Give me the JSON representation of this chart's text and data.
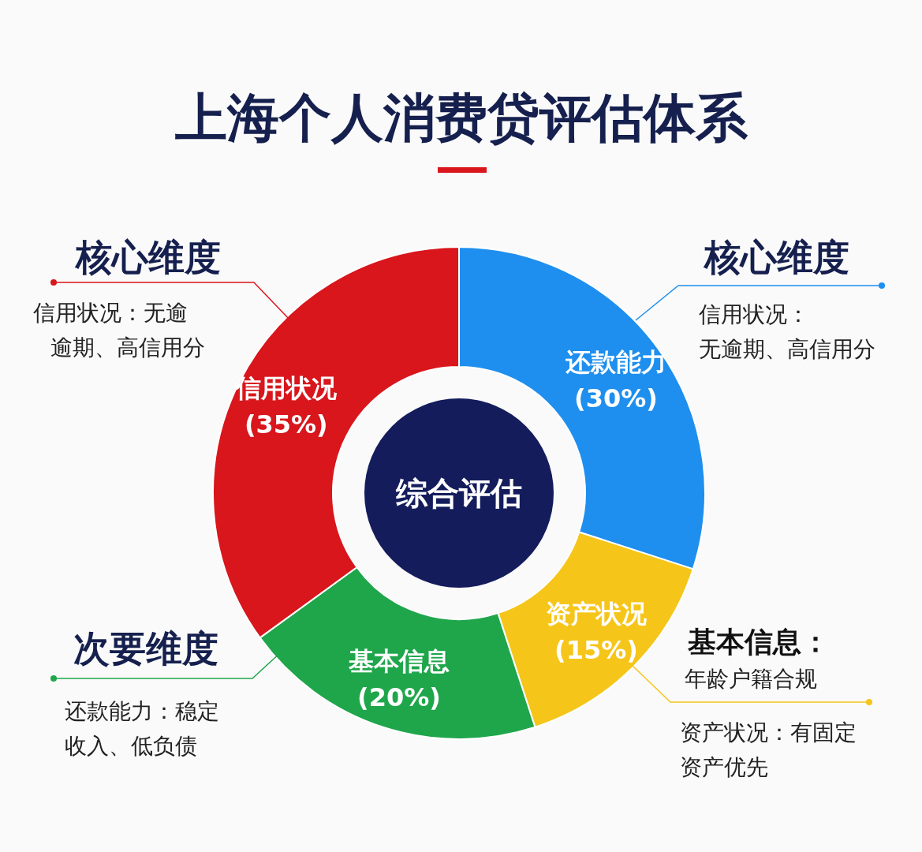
{
  "chart_data": {
    "type": "donut",
    "title": "上海个人消费贷评估体系",
    "categories": [
      "还款能力",
      "资产状况",
      "基本信息",
      "信用状况"
    ],
    "values": [
      30,
      15,
      20,
      35
    ],
    "colors": [
      "#1e8fee",
      "#f6c51a",
      "#1fa64b",
      "#d8161c"
    ],
    "value_labels": [
      "(30%)",
      "(15%)",
      "(20%)",
      "(35%)"
    ],
    "annotations": [
      "综合评估",
      "核心维度",
      "信用状况：无逾",
      "逾期、高信用分",
      "核心维度",
      "信用状况：",
      "无逾期、高信用分",
      "次要维度",
      "还款能力：稳定",
      "收入、低负债",
      "基本信息：",
      "年龄户籍合规",
      "资产状况：有固定",
      "资产优先"
    ]
  }
}
